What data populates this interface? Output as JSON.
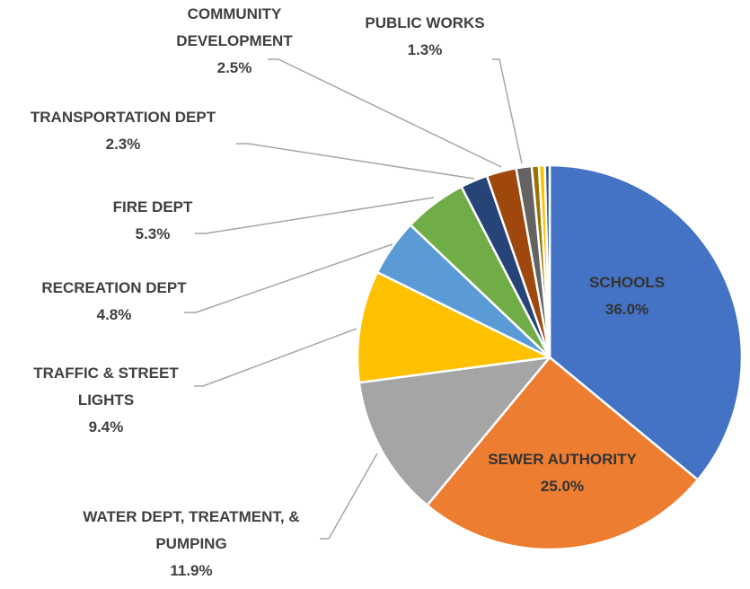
{
  "chart_data": {
    "type": "pie",
    "title": "",
    "start_angle_deg": 0,
    "direction": "clockwise",
    "legend": "none",
    "slices": [
      {
        "label": [
          "SCHOOLS"
        ],
        "value": 36.0,
        "value_text": "36.0%",
        "color": "#4472C4"
      },
      {
        "label": [
          "SEWER AUTHORITY"
        ],
        "value": 25.0,
        "value_text": "25.0%",
        "color": "#ED7D31"
      },
      {
        "label": [
          "WATER DEPT, TREATMENT, &",
          "PUMPING"
        ],
        "value": 11.9,
        "value_text": "11.9%",
        "color": "#A5A5A5"
      },
      {
        "label": [
          "TRAFFIC & STREET",
          "LIGHTS"
        ],
        "value": 9.4,
        "value_text": "9.4%",
        "color": "#FFC000"
      },
      {
        "label": [
          "RECREATION DEPT"
        ],
        "value": 4.8,
        "value_text": "4.8%",
        "color": "#5B9BD5"
      },
      {
        "label": [
          "FIRE DEPT"
        ],
        "value": 5.3,
        "value_text": "5.3%",
        "color": "#70AD47"
      },
      {
        "label": [
          "TRANSPORTATION DEPT"
        ],
        "value": 2.3,
        "value_text": "2.3%",
        "color": "#264478"
      },
      {
        "label": [
          "COMMUNITY",
          "DEVELOPMENT"
        ],
        "value": 2.5,
        "value_text": "2.5%",
        "color": "#9E480E"
      },
      {
        "label": [
          "PUBLIC WORKS"
        ],
        "value": 1.3,
        "value_text": "1.3%",
        "color": "#636363"
      },
      {
        "label": [],
        "value": 0.6,
        "value_text": "",
        "color": "#997300"
      },
      {
        "label": [],
        "value": 0.5,
        "value_text": "",
        "color": "#FFC000"
      },
      {
        "label": [],
        "value": 0.4,
        "value_text": "",
        "color": "#255E91"
      }
    ]
  }
}
